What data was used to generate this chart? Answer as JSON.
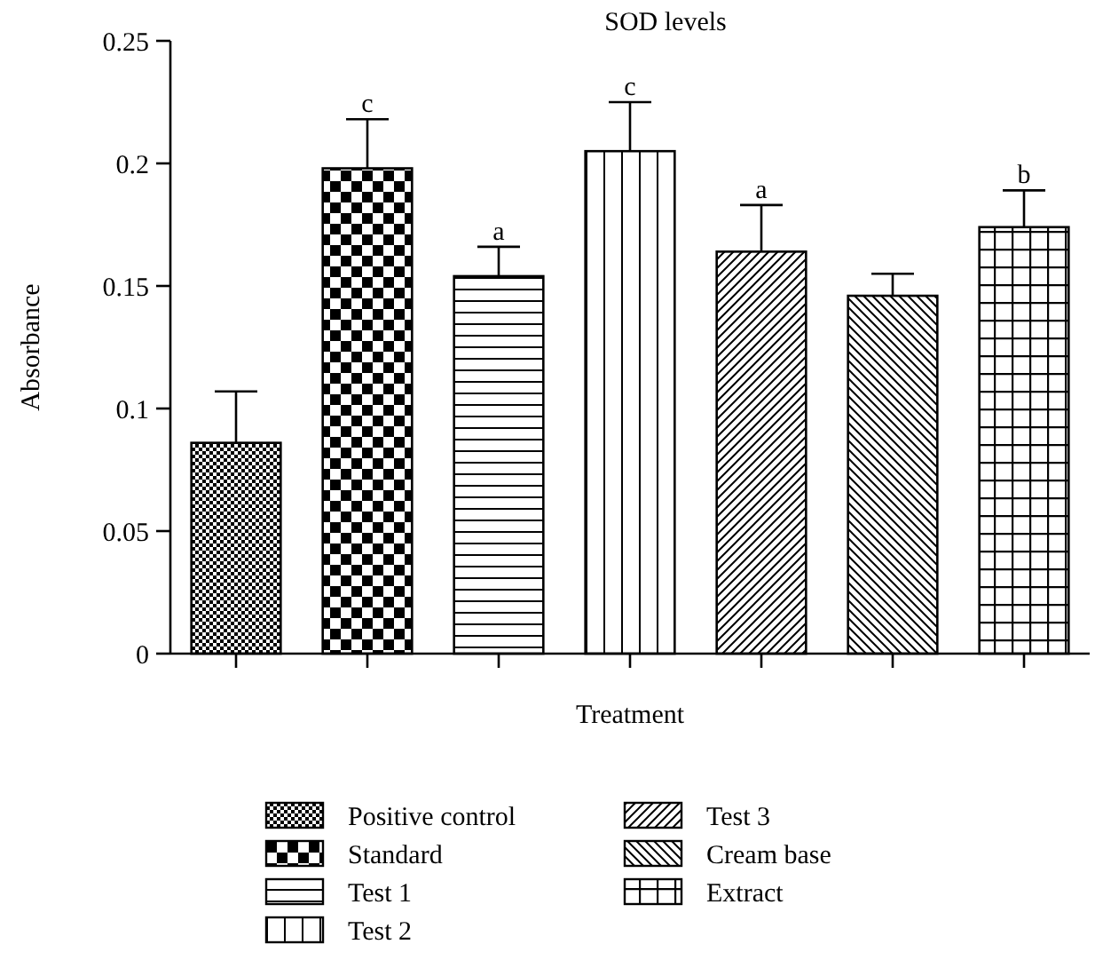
{
  "chart_data": {
    "type": "bar",
    "title": "SOD levels",
    "xlabel": "Treatment",
    "ylabel": "Absorbance",
    "categories": [
      null,
      null,
      null,
      null,
      null,
      null,
      null
    ],
    "series": [
      {
        "name": "Positive control",
        "color": "#000000",
        "values": [
          0.086,
          null,
          null,
          null,
          null,
          null,
          null
        ],
        "errors": [
          0.021,
          null,
          null,
          null,
          null,
          null,
          null
        ]
      },
      {
        "name": "Standard",
        "color": "#000000",
        "values": [
          null,
          0.198,
          null,
          null,
          null,
          null,
          null
        ],
        "errors": [
          null,
          0.02,
          null,
          null,
          null,
          null,
          null
        ],
        "value_labels": [
          null,
          "c",
          null,
          null,
          null,
          null,
          null
        ]
      },
      {
        "name": "Test 1",
        "color": "#000000",
        "values": [
          null,
          null,
          0.154,
          null,
          null,
          null,
          null
        ],
        "errors": [
          null,
          null,
          0.012,
          null,
          null,
          null,
          null
        ],
        "value_labels": [
          null,
          null,
          "a",
          null,
          null,
          null,
          null
        ]
      },
      {
        "name": "Test 2",
        "color": "#000000",
        "values": [
          null,
          null,
          null,
          0.205,
          null,
          null,
          null
        ],
        "errors": [
          null,
          null,
          null,
          0.02,
          null,
          null,
          null
        ],
        "value_labels": [
          null,
          null,
          null,
          "c",
          null,
          null,
          null
        ]
      },
      {
        "name": "Test 3",
        "color": "#000000",
        "values": [
          null,
          null,
          null,
          null,
          0.164,
          null,
          null
        ],
        "errors": [
          null,
          null,
          null,
          null,
          0.019,
          null,
          null
        ],
        "value_labels": [
          null,
          null,
          null,
          null,
          "a",
          null,
          null
        ]
      },
      {
        "name": "Cream base",
        "color": "#000000",
        "values": [
          null,
          null,
          null,
          null,
          null,
          0.146,
          null
        ],
        "errors": [
          null,
          null,
          null,
          null,
          null,
          0.009,
          null
        ]
      },
      {
        "name": "Extract",
        "color": "#000000",
        "values": [
          null,
          null,
          null,
          null,
          null,
          null,
          0.174
        ],
        "errors": [
          null,
          null,
          null,
          null,
          null,
          null,
          0.015
        ],
        "value_labels": [
          null,
          null,
          null,
          null,
          null,
          null,
          "b"
        ]
      }
    ],
    "ylim": [
      0,
      0.25
    ],
    "yticks": [
      0,
      0.05,
      0.1,
      0.15,
      0.2,
      0.25
    ],
    "grid": false,
    "legend": "bottom"
  }
}
